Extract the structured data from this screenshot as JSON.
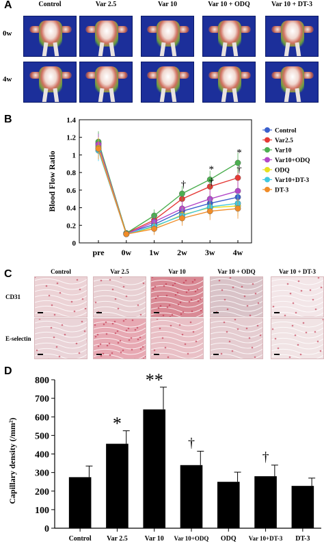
{
  "panelA": {
    "letter": "A",
    "columns": [
      "Control",
      "Var 2.5",
      "Var 10",
      "Var 10 + ODQ",
      "Var 10 + DT-3"
    ],
    "rows": [
      "0w",
      "4w"
    ]
  },
  "panelB": {
    "letter": "B",
    "chart_data": {
      "type": "line",
      "ylabel": "Blood Flow Ratio",
      "xlabel": "",
      "categories": [
        "pre",
        "0w",
        "1w",
        "2w",
        "3w",
        "4w"
      ],
      "ylim": [
        0,
        1.4
      ],
      "yticks": [
        0,
        0.2,
        0.4,
        0.6,
        0.8,
        1,
        1.2,
        1.4
      ],
      "legend_position": "right",
      "series": [
        {
          "name": "Control",
          "color": "#3a5fcd",
          "values": [
            1.13,
            0.11,
            0.21,
            0.36,
            0.45,
            0.52
          ]
        },
        {
          "name": "Var2.5",
          "color": "#e53935",
          "values": [
            1.1,
            0.11,
            0.26,
            0.5,
            0.64,
            0.74
          ]
        },
        {
          "name": "Var10",
          "color": "#4caf50",
          "values": [
            1.15,
            0.11,
            0.31,
            0.56,
            0.72,
            0.91
          ]
        },
        {
          "name": "Var10+ODQ",
          "color": "#b347c8",
          "values": [
            1.12,
            0.1,
            0.24,
            0.39,
            0.5,
            0.59
          ]
        },
        {
          "name": "ODQ",
          "color": "#e8e020",
          "values": [
            1.08,
            0.1,
            0.18,
            0.32,
            0.4,
            0.42
          ]
        },
        {
          "name": "Var10+DT-3",
          "color": "#40c8e0",
          "values": [
            1.05,
            0.1,
            0.19,
            0.31,
            0.41,
            0.45
          ]
        },
        {
          "name": "DT-3",
          "color": "#f08c28",
          "values": [
            1.07,
            0.1,
            0.16,
            0.28,
            0.36,
            0.39
          ]
        }
      ],
      "annotations": [
        {
          "text": "†",
          "x": "2w",
          "y": 0.63
        },
        {
          "text": "*",
          "x": "3w",
          "y": 0.8
        },
        {
          "text": "†",
          "x": "3w",
          "y": 0.66
        },
        {
          "text": "*",
          "x": "4w",
          "y": 0.99
        },
        {
          "text": "†",
          "x": "4w",
          "y": 0.8
        }
      ]
    }
  },
  "panelC": {
    "letter": "C",
    "columns": [
      "Control",
      "Var 2.5",
      "Var 10",
      "Var 10 + ODQ",
      "Var 10 + DT-3"
    ],
    "rows": [
      "CD31",
      "E-selectin"
    ]
  },
  "panelD": {
    "letter": "D",
    "chart_data": {
      "type": "bar",
      "ylabel": "Capillary density (/mm²)",
      "xlabel": "",
      "categories": [
        "Control",
        "Var 2.5",
        "Var 10",
        "Var 10+ODQ",
        "ODQ",
        "Var 10+DT-3",
        "DT-3"
      ],
      "values": [
        275,
        455,
        640,
        340,
        250,
        280,
        228
      ],
      "errors": [
        60,
        70,
        120,
        75,
        52,
        60,
        42
      ],
      "ylim": [
        0,
        800
      ],
      "yticks": [
        0,
        100,
        200,
        300,
        400,
        500,
        600,
        700,
        800
      ],
      "bar_color": "#000000",
      "annotations": [
        {
          "text": "*",
          "category": "Var 2.5"
        },
        {
          "text": "**",
          "category": "Var 10"
        },
        {
          "text": "†",
          "category": "Var 10+ODQ"
        },
        {
          "text": "†",
          "category": "Var 10+DT-3"
        }
      ]
    }
  }
}
